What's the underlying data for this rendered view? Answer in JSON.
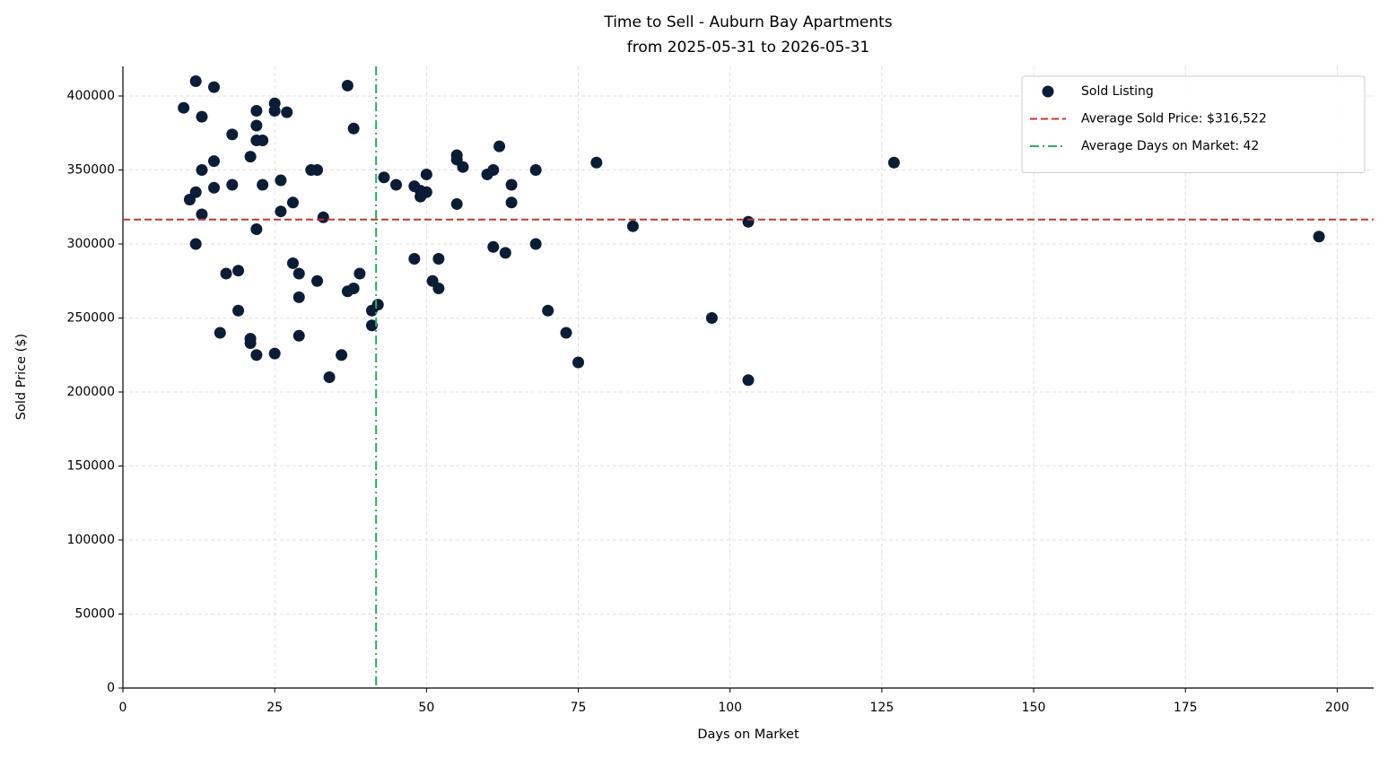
{
  "chart_data": {
    "type": "scatter",
    "title": "Time to Sell - Auburn Bay Apartments",
    "subtitle": "from 2025-05-31 to 2026-05-31",
    "x_label": "Days on Market",
    "y_label": "Sold Price ($)",
    "xlim": [
      0,
      206
    ],
    "ylim": [
      0,
      420000
    ],
    "xticks": [
      0,
      25,
      50,
      75,
      100,
      125,
      150,
      175,
      200
    ],
    "yticks": [
      0,
      50000,
      100000,
      150000,
      200000,
      250000,
      300000,
      350000,
      400000
    ],
    "grid": true,
    "legend": "upper right",
    "series": [
      {
        "name": "Sold Listing",
        "color": "#0b1d36",
        "x": [
          10,
          12,
          15,
          13,
          11,
          12,
          13,
          13,
          12,
          15,
          15,
          18,
          18,
          17,
          19,
          19,
          16,
          21,
          21,
          22,
          22,
          22,
          22,
          23,
          21,
          23,
          22,
          25,
          25,
          27,
          26,
          26,
          28,
          28,
          29,
          29,
          32,
          29,
          25,
          31,
          32,
          33,
          34,
          36,
          37,
          38,
          37,
          38,
          39,
          41,
          41,
          42,
          43,
          45,
          48,
          49,
          49,
          50,
          50,
          48,
          51,
          52,
          52,
          55,
          55,
          56,
          55,
          60,
          61,
          62,
          64,
          64,
          61,
          63,
          68,
          68,
          70,
          73,
          75,
          78,
          84,
          97,
          103,
          103,
          127,
          197
        ],
        "values": [
          392000,
          410000,
          406000,
          386000,
          330000,
          335000,
          350000,
          320000,
          300000,
          356000,
          338000,
          374000,
          340000,
          280000,
          282000,
          255000,
          240000,
          236000,
          233000,
          225000,
          390000,
          380000,
          370000,
          370000,
          359000,
          340000,
          310000,
          395000,
          390000,
          389000,
          343000,
          322000,
          328000,
          287000,
          280000,
          264000,
          275000,
          238000,
          226000,
          350000,
          350000,
          318000,
          210000,
          225000,
          407000,
          378000,
          268000,
          270000,
          280000,
          255000,
          245000,
          259000,
          345000,
          340000,
          339000,
          336000,
          332000,
          347000,
          335000,
          290000,
          275000,
          290000,
          270000,
          360000,
          357000,
          352000,
          327000,
          347000,
          350000,
          366000,
          340000,
          328000,
          298000,
          294000,
          350000,
          300000,
          255000,
          240000,
          220000,
          355000,
          312000,
          250000,
          315000,
          208000,
          355000,
          305000
        ]
      }
    ],
    "hlines": [
      {
        "name": "Average Sold Price: $316,522",
        "y": 316522,
        "color": "#c0392b",
        "style": "dashed"
      }
    ],
    "vlines": [
      {
        "name": "Average Days on Market: 42",
        "x": 41.7,
        "color": "#27ae60",
        "style": "dashdot"
      }
    ]
  }
}
